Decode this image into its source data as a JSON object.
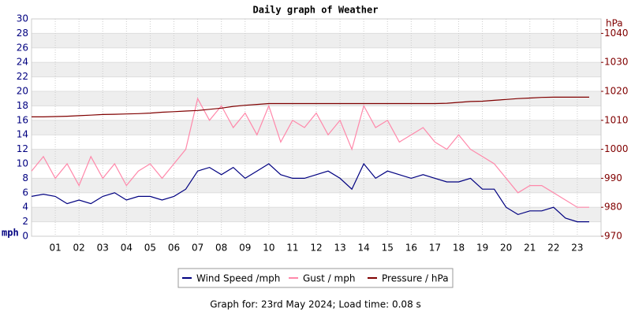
{
  "chart_data": {
    "type": "line",
    "title": "Daily graph of Weather",
    "y_label": "mph",
    "y2_label": "hPa",
    "footer": "Graph for: 23rd May 2024; Load time: 0.08 s",
    "x": [
      0,
      0.5,
      1,
      1.5,
      2,
      2.5,
      3,
      3.5,
      4,
      4.5,
      5,
      5.5,
      6,
      6.5,
      7,
      7.5,
      8,
      8.5,
      9,
      9.5,
      10,
      10.5,
      11,
      11.5,
      12,
      12.5,
      13,
      13.5,
      14,
      14.5,
      15,
      15.5,
      16,
      16.5,
      17,
      17.5,
      18,
      18.5,
      19,
      19.5,
      20,
      20.5,
      21,
      21.5,
      22,
      22.5,
      23,
      23.5
    ],
    "xlim": [
      0,
      24
    ],
    "xticks": [
      {
        "value": 1,
        "label": "01"
      },
      {
        "value": 2,
        "label": "02"
      },
      {
        "value": 3,
        "label": "03"
      },
      {
        "value": 4,
        "label": "04"
      },
      {
        "value": 5,
        "label": "05"
      },
      {
        "value": 6,
        "label": "06"
      },
      {
        "value": 7,
        "label": "07"
      },
      {
        "value": 8,
        "label": "08"
      },
      {
        "value": 9,
        "label": "09"
      },
      {
        "value": 10,
        "label": "10"
      },
      {
        "value": 11,
        "label": "11"
      },
      {
        "value": 12,
        "label": "12"
      },
      {
        "value": 13,
        "label": "13"
      },
      {
        "value": 14,
        "label": "14"
      },
      {
        "value": 15,
        "label": "15"
      },
      {
        "value": 16,
        "label": "16"
      },
      {
        "value": 17,
        "label": "17"
      },
      {
        "value": 18,
        "label": "18"
      },
      {
        "value": 19,
        "label": "19"
      },
      {
        "value": 20,
        "label": "20"
      },
      {
        "value": 21,
        "label": "21"
      },
      {
        "value": 22,
        "label": "22"
      },
      {
        "value": 23,
        "label": "23"
      }
    ],
    "ylim": [
      0,
      30
    ],
    "yticks": [
      0,
      2,
      4,
      6,
      8,
      10,
      12,
      14,
      16,
      18,
      20,
      22,
      24,
      26,
      28,
      30
    ],
    "y2lim": [
      970,
      1045
    ],
    "y2ticks": [
      970,
      980,
      990,
      1000,
      1010,
      1020,
      1030,
      1040
    ],
    "grid": true,
    "series": [
      {
        "name": "Wind Speed /mph",
        "color": "#000080",
        "values": [
          5.5,
          5.8,
          5.5,
          4.5,
          5,
          4.5,
          5.5,
          6,
          5,
          5.5,
          5.5,
          5,
          5.5,
          6.5,
          9,
          9.5,
          8.5,
          9.5,
          8,
          9,
          10,
          8.5,
          8,
          8,
          8.5,
          9,
          8,
          6.5,
          10,
          8,
          9,
          8.5,
          8,
          8.5,
          8,
          7.5,
          7.5,
          8,
          6.5,
          6.5,
          4,
          3,
          3.5,
          3.5,
          4,
          2.5,
          2,
          2
        ]
      },
      {
        "name": "Gust / mph",
        "color": "#ff88aa",
        "values": [
          9,
          11,
          8,
          10,
          7,
          11,
          8,
          10,
          7,
          9,
          10,
          8,
          10,
          12,
          19,
          16,
          18,
          15,
          17,
          14,
          18,
          13,
          16,
          15,
          17,
          14,
          16,
          12,
          18,
          15,
          16,
          13,
          14,
          15,
          13,
          12,
          14,
          12,
          11,
          10,
          8,
          6,
          7,
          7,
          6,
          5,
          4,
          4
        ]
      },
      {
        "name": "Pressure / hPa",
        "color": "#800000",
        "axis": "y2",
        "values": [
          1011.2,
          1011.2,
          1011.3,
          1011.4,
          1011.6,
          1011.8,
          1012,
          1012.1,
          1012.2,
          1012.3,
          1012.5,
          1012.8,
          1013,
          1013.2,
          1013.4,
          1013.8,
          1014.2,
          1014.8,
          1015.2,
          1015.5,
          1015.8,
          1015.8,
          1015.8,
          1015.8,
          1015.8,
          1015.8,
          1015.8,
          1015.8,
          1015.8,
          1015.8,
          1015.8,
          1015.8,
          1015.8,
          1015.8,
          1015.8,
          1015.9,
          1016.2,
          1016.5,
          1016.6,
          1016.9,
          1017.2,
          1017.5,
          1017.7,
          1017.9,
          1018,
          1018,
          1018,
          1018
        ]
      }
    ]
  }
}
